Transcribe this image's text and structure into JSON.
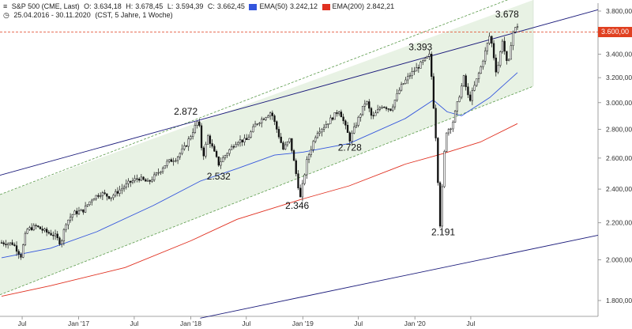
{
  "header": {
    "symbol_line": "S&P 500 (CME, Last)",
    "o_label": "O:",
    "o_value": "3.634,18",
    "h_label": "H:",
    "h_value": "3.678,45",
    "l_label": "L:",
    "l_value": "3.594,39",
    "c_label": "C:",
    "c_value": "3.662,45",
    "ema50_label": "EMA(50)",
    "ema50_value": "3.242,12",
    "ema200_label": "EMA(200)",
    "ema200_value": "2.842,21",
    "range": "25.04.2016 - 30.11.2020",
    "info": "(CST, 5 Jahre, 1 Woche)"
  },
  "colors": {
    "candle": "#111111",
    "ema50": "#3355dd",
    "ema200": "#e03020",
    "trend": "#1a1a7a",
    "channel_fill": "#e8f2e4",
    "channel_edge": "#5a9a4a",
    "price_line": "#e04020"
  },
  "price_tag": "3.600,00",
  "chart_data": {
    "type": "candlestick",
    "y_axis": {
      "ticks": [
        "3.800,00",
        "3.600,00",
        "3.400,00",
        "3.200,00",
        "3.000,00",
        "2.800,00",
        "2.600,00",
        "2.400,00",
        "2.200,00",
        "2.000,00",
        "1.800,00"
      ],
      "tick_values": [
        3800,
        3600,
        3400,
        3200,
        3000,
        2800,
        2600,
        2400,
        2200,
        2000,
        1800
      ],
      "log_scale": true
    },
    "x_axis": {
      "ticks": [
        "Jul",
        "Jan '17",
        "Jul",
        "Jan '18",
        "Jul",
        "Jan '19",
        "Jul",
        "Jan '20",
        "Jul"
      ],
      "tick_dates": [
        "2016-07-01",
        "2017-01-01",
        "2017-07-01",
        "2018-01-01",
        "2018-07-01",
        "2019-01-01",
        "2019-07-01",
        "2020-01-01",
        "2020-07-01"
      ],
      "start": "2016-04-25",
      "end": "2020-11-30"
    },
    "annotations": [
      {
        "text": "2.872",
        "date": "2018-01-26",
        "value": 2872
      },
      {
        "text": "2.532",
        "date": "2018-04-02",
        "value": 2532
      },
      {
        "text": "2.346",
        "date": "2018-12-24",
        "value": 2346
      },
      {
        "text": "2.728",
        "date": "2019-06-03",
        "value": 2728
      },
      {
        "text": "3.393",
        "date": "2020-02-19",
        "value": 3393
      },
      {
        "text": "2.191",
        "date": "2020-03-23",
        "value": 2191
      },
      {
        "text": "3.678",
        "date": "2020-11-27",
        "value": 3678
      }
    ],
    "series": [
      {
        "name": "S&P 500 (CME, Last)",
        "role": "close",
        "dates": [
          "2016-04-25",
          "2016-06-01",
          "2016-06-27",
          "2016-07-15",
          "2016-08-15",
          "2016-09-15",
          "2016-10-15",
          "2016-11-04",
          "2016-11-20",
          "2016-12-15",
          "2017-01-15",
          "2017-02-15",
          "2017-03-15",
          "2017-04-15",
          "2017-05-15",
          "2017-06-15",
          "2017-07-15",
          "2017-08-15",
          "2017-09-15",
          "2017-10-15",
          "2017-11-15",
          "2017-12-15",
          "2018-01-26",
          "2018-02-09",
          "2018-02-26",
          "2018-04-02",
          "2018-05-01",
          "2018-06-01",
          "2018-07-01",
          "2018-08-01",
          "2018-09-20",
          "2018-10-29",
          "2018-11-20",
          "2018-12-24",
          "2019-01-15",
          "2019-02-15",
          "2019-03-15",
          "2019-04-30",
          "2019-06-03",
          "2019-07-26",
          "2019-08-15",
          "2019-09-15",
          "2019-10-15",
          "2019-11-15",
          "2019-12-15",
          "2020-01-15",
          "2020-02-19",
          "2020-03-09",
          "2020-03-23",
          "2020-04-10",
          "2020-05-01",
          "2020-06-08",
          "2020-06-26",
          "2020-08-01",
          "2020-09-02",
          "2020-09-23",
          "2020-10-12",
          "2020-10-30",
          "2020-11-13",
          "2020-11-30"
        ],
        "values": [
          2090,
          2085,
          2020,
          2160,
          2180,
          2150,
          2130,
          2085,
          2200,
          2255,
          2270,
          2345,
          2375,
          2350,
          2395,
          2440,
          2470,
          2440,
          2500,
          2570,
          2600,
          2680,
          2872,
          2600,
          2750,
          2560,
          2640,
          2720,
          2720,
          2840,
          2930,
          2660,
          2730,
          2346,
          2590,
          2780,
          2830,
          2945,
          2728,
          3020,
          2880,
          2980,
          2950,
          3120,
          3220,
          3300,
          3393,
          2750,
          2191,
          2780,
          2830,
          3200,
          3010,
          3270,
          3580,
          3230,
          3530,
          3270,
          3590,
          3662
        ]
      },
      {
        "name": "EMA(50)",
        "values_dates": [
          "2016-04-25",
          "2016-10-01",
          "2017-03-01",
          "2017-09-01",
          "2018-02-01",
          "2018-06-01",
          "2018-10-01",
          "2019-01-01",
          "2019-06-01",
          "2019-12-01",
          "2020-03-01",
          "2020-04-15",
          "2020-06-01",
          "2020-09-01",
          "2020-11-30"
        ],
        "values": [
          2010,
          2060,
          2150,
          2300,
          2450,
          2530,
          2620,
          2640,
          2700,
          2880,
          3020,
          2930,
          2900,
          3040,
          3242
        ]
      },
      {
        "name": "EMA(200)",
        "values_dates": [
          "2016-04-25",
          "2016-10-01",
          "2017-06-01",
          "2018-01-01",
          "2018-06-01",
          "2019-01-01",
          "2019-06-01",
          "2019-12-01",
          "2020-04-01",
          "2020-08-01",
          "2020-11-30"
        ],
        "values": [
          1820,
          1870,
          1960,
          2100,
          2220,
          2340,
          2420,
          2560,
          2630,
          2710,
          2842
        ]
      }
    ],
    "channel": {
      "upper": [
        [
          "2016-04-25",
          2370
        ],
        [
          "2020-11-30",
          3950
        ]
      ],
      "lower": [
        [
          "2016-04-25",
          1830
        ],
        [
          "2020-11-30",
          3080
        ]
      ]
    },
    "trend_upper": [
      [
        "2016-04-25",
        2490
      ],
      [
        "2020-11-30",
        3600
      ]
    ],
    "trend_lower": [
      [
        "2018-02-01",
        1720
      ],
      [
        "2020-12-15",
        2045
      ]
    ],
    "price_level": 3600
  }
}
